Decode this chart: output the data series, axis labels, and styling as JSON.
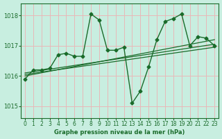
{
  "title": "Graphe pression niveau de la mer (hPa)",
  "background_color": "#c8eee0",
  "grid_color": "#e8b8b8",
  "line_color": "#1a6b2a",
  "tick_color": "#1a6b2a",
  "xlim": [
    -0.5,
    23.5
  ],
  "ylim": [
    1014.6,
    1018.4
  ],
  "yticks": [
    1015,
    1016,
    1017,
    1018
  ],
  "xticks": [
    0,
    1,
    2,
    3,
    4,
    5,
    6,
    7,
    8,
    9,
    10,
    11,
    12,
    13,
    14,
    15,
    16,
    17,
    18,
    19,
    20,
    21,
    22,
    23
  ],
  "series_main": {
    "x": [
      0,
      1,
      2,
      3,
      4,
      5,
      6,
      7,
      8,
      9,
      10,
      11,
      12,
      13,
      14,
      15,
      16,
      17,
      18,
      19,
      20,
      21,
      22,
      23
    ],
    "y": [
      1015.9,
      1016.2,
      1016.2,
      1016.25,
      1016.7,
      1016.75,
      1016.65,
      1016.65,
      1018.05,
      1017.85,
      1016.85,
      1016.85,
      1016.95,
      1015.1,
      1015.5,
      1016.3,
      1017.2,
      1017.8,
      1017.9,
      1018.05,
      1017.0,
      1017.3,
      1017.25,
      1017.0
    ]
  },
  "trend_lines": [
    {
      "x0": 0,
      "x1": 23,
      "y0": 1016.05,
      "y1": 1016.95
    },
    {
      "x0": 0,
      "x1": 23,
      "y0": 1016.1,
      "y1": 1017.05
    },
    {
      "x0": 0,
      "x1": 23,
      "y0": 1016.0,
      "y1": 1017.2
    }
  ],
  "marker": "D",
  "markersize": 2.5,
  "linewidth_main": 1.0,
  "linewidth_trend": 0.9,
  "xlabel_fontsize": 6.0,
  "ytick_fontsize": 6.0,
  "xtick_fontsize": 5.5
}
